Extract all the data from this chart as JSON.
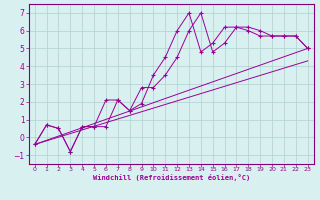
{
  "xlabel": "Windchill (Refroidissement éolien,°C)",
  "bg_color": "#d8f0f0",
  "grid_color": "#b0d0d0",
  "line_color": "#990099",
  "spine_color": "#800080",
  "xlim": [
    -0.5,
    23.5
  ],
  "ylim": [
    -1.5,
    7.5
  ],
  "xticks": [
    0,
    1,
    2,
    3,
    4,
    5,
    6,
    7,
    8,
    9,
    10,
    11,
    12,
    13,
    14,
    15,
    16,
    17,
    18,
    19,
    20,
    21,
    22,
    23
  ],
  "yticks": [
    -1,
    0,
    1,
    2,
    3,
    4,
    5,
    6,
    7
  ],
  "series": [
    {
      "x": [
        0,
        1,
        2,
        3,
        4,
        5,
        6,
        7,
        8,
        9,
        10,
        11,
        12,
        13,
        14,
        15,
        16,
        17,
        18,
        19,
        20,
        21,
        22,
        23
      ],
      "y": [
        -0.4,
        0.7,
        0.5,
        -0.8,
        0.6,
        0.6,
        0.6,
        2.1,
        1.5,
        1.9,
        3.5,
        4.5,
        6.0,
        7.0,
        4.8,
        5.3,
        6.2,
        6.2,
        6.0,
        5.7,
        5.7,
        5.7,
        5.7,
        5.0
      ]
    },
    {
      "x": [
        0,
        1,
        2,
        3,
        4,
        5,
        6,
        7,
        8,
        9,
        10,
        11,
        12,
        13,
        14,
        15,
        16,
        17,
        18,
        19,
        20,
        21,
        22,
        23
      ],
      "y": [
        -0.4,
        0.7,
        0.5,
        -0.8,
        0.6,
        0.6,
        2.1,
        2.1,
        1.5,
        2.8,
        2.8,
        3.5,
        4.5,
        6.0,
        7.0,
        4.8,
        5.3,
        6.2,
        6.2,
        6.0,
        5.7,
        5.7,
        5.7,
        5.0
      ]
    },
    {
      "x": [
        0,
        23
      ],
      "y": [
        -0.4,
        5.0
      ]
    },
    {
      "x": [
        0,
        23
      ],
      "y": [
        -0.4,
        4.3
      ]
    }
  ]
}
